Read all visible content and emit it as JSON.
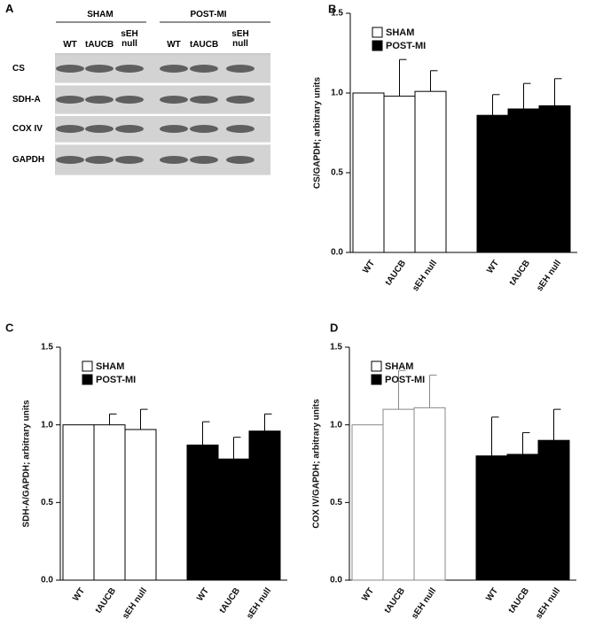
{
  "blot": {
    "panel": "A",
    "groups": [
      "SHAM",
      "POST-MI"
    ],
    "lanes": [
      "WT",
      "tAUCB",
      "sEH null"
    ],
    "rows": [
      "CS",
      "SDH-A",
      "COX IV",
      "GAPDH"
    ]
  },
  "chart_data": [
    {
      "type": "bar",
      "panel": "B",
      "ylabel": "CS/GAPDH; arbitrary units",
      "categories": [
        "WT",
        "tAUCB",
        "sEH null"
      ],
      "ylim": [
        0,
        1.5
      ],
      "yticks": [
        {
          "value": 0,
          "label": "0.0"
        },
        0.5,
        {
          "value": 1,
          "label": "1.0"
        },
        1.5
      ],
      "legend": "upper left",
      "series": [
        {
          "name": "SHAM",
          "color": "#ffffff",
          "values": [
            1.0,
            0.98,
            1.01
          ],
          "errors": [
            null,
            0.23,
            0.13
          ]
        },
        {
          "name": "POST-MI",
          "color": "#000000",
          "values": [
            0.86,
            0.9,
            0.92
          ],
          "errors": [
            0.13,
            0.16,
            0.17
          ]
        }
      ]
    },
    {
      "type": "bar",
      "panel": "C",
      "ylabel": "SDH-A/GAPDH; arbitrary units",
      "categories": [
        "WT",
        "tAUCB",
        "sEH null"
      ],
      "ylim": [
        0,
        1.5
      ],
      "yticks": [
        {
          "value": 0,
          "label": "0.0"
        },
        0.5,
        {
          "value": 1,
          "label": "1.0"
        },
        1.5
      ],
      "legend": "upper left",
      "series": [
        {
          "name": "SHAM",
          "color": "#ffffff",
          "values": [
            1.0,
            1.0,
            0.97
          ],
          "errors": [
            null,
            0.07,
            0.13
          ]
        },
        {
          "name": "POST-MI",
          "color": "#000000",
          "values": [
            0.87,
            0.78,
            0.96
          ],
          "errors": [
            0.15,
            0.14,
            0.11
          ]
        }
      ]
    },
    {
      "type": "bar",
      "panel": "D",
      "ylabel": "COX IV/GAPDH; arbitrary units",
      "categories": [
        "WT",
        "tAUCB",
        "sEH null"
      ],
      "ylim": [
        0,
        1.5
      ],
      "yticks": [
        {
          "value": 0,
          "label": "0.0"
        },
        0.5,
        {
          "value": 1,
          "label": "1.0"
        },
        1.5
      ],
      "legend": "upper left",
      "series": [
        {
          "name": "SHAM",
          "color": "#ffffff",
          "values": [
            1.0,
            1.1,
            1.11
          ],
          "errors": [
            null,
            0.25,
            0.21
          ]
        },
        {
          "name": "POST-MI",
          "color": "#000000",
          "values": [
            0.8,
            0.81,
            0.9
          ],
          "errors": [
            0.25,
            0.14,
            0.2
          ]
        }
      ]
    }
  ]
}
